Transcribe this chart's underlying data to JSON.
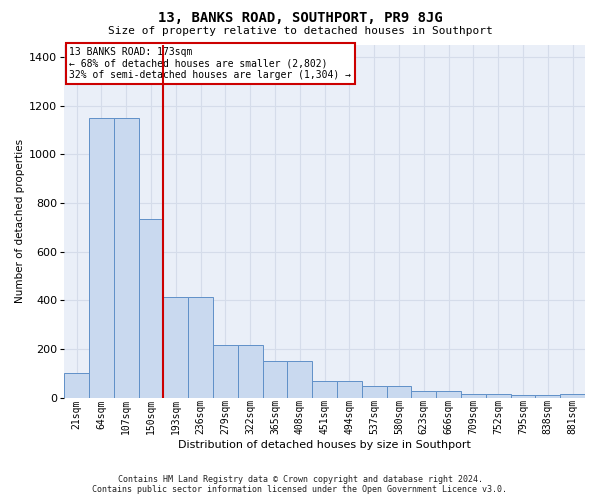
{
  "title": "13, BANKS ROAD, SOUTHPORT, PR9 8JG",
  "subtitle": "Size of property relative to detached houses in Southport",
  "xlabel": "Distribution of detached houses by size in Southport",
  "ylabel": "Number of detached properties",
  "footer_line1": "Contains HM Land Registry data © Crown copyright and database right 2024.",
  "footer_line2": "Contains public sector information licensed under the Open Government Licence v3.0.",
  "annotation_line1": "13 BANKS ROAD: 173sqm",
  "annotation_line2": "← 68% of detached houses are smaller (2,802)",
  "annotation_line3": "32% of semi-detached houses are larger (1,304) →",
  "bar_color": "#c9d9ef",
  "bar_edge_color": "#6090c8",
  "vline_color": "#cc0000",
  "categories": [
    "21sqm",
    "64sqm",
    "107sqm",
    "150sqm",
    "193sqm",
    "236sqm",
    "279sqm",
    "322sqm",
    "365sqm",
    "408sqm",
    "451sqm",
    "494sqm",
    "537sqm",
    "580sqm",
    "623sqm",
    "666sqm",
    "709sqm",
    "752sqm",
    "795sqm",
    "838sqm",
    "881sqm"
  ],
  "values": [
    100,
    1150,
    1150,
    735,
    415,
    415,
    215,
    215,
    150,
    150,
    70,
    70,
    50,
    50,
    28,
    28,
    15,
    15,
    10,
    10,
    15
  ],
  "ylim": [
    0,
    1450
  ],
  "yticks": [
    0,
    200,
    400,
    600,
    800,
    1000,
    1200,
    1400
  ],
  "vline_xindex": 3.5,
  "grid_color": "#d5dcea",
  "bg_color": "#eaeff8",
  "ann_box_edge": "#cc0000"
}
